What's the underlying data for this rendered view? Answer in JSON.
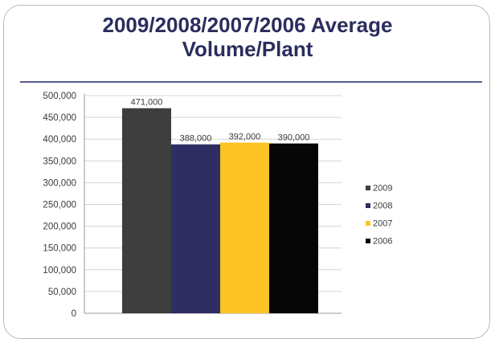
{
  "slide": {
    "title": "2009/2008/2007/2006 Average\nVolume/Plant"
  },
  "chart_data": {
    "type": "bar",
    "title": "2009/2008/2007/2006 Average Volume/Plant",
    "xlabel": "",
    "ylabel": "",
    "ylim": [
      0,
      500000
    ],
    "yticks": [
      0,
      50000,
      100000,
      150000,
      200000,
      250000,
      300000,
      350000,
      400000,
      450000,
      500000
    ],
    "ytick_labels": [
      "0",
      "50,000",
      "100,000",
      "150,000",
      "200,000",
      "250,000",
      "300,000",
      "350,000",
      "400,000",
      "450,000",
      "500,000"
    ],
    "grid": true,
    "legend": "right",
    "series": [
      {
        "name": "2009",
        "value": 471000,
        "label": "471,000",
        "color": "#3e3e3e"
      },
      {
        "name": "2008",
        "value": 388000,
        "label": "388,000",
        "color": "#2e2e63"
      },
      {
        "name": "2007",
        "value": 392000,
        "label": "392,000",
        "color": "#fcc422"
      },
      {
        "name": "2006",
        "value": 390000,
        "label": "390,000",
        "color": "#060606"
      }
    ]
  }
}
